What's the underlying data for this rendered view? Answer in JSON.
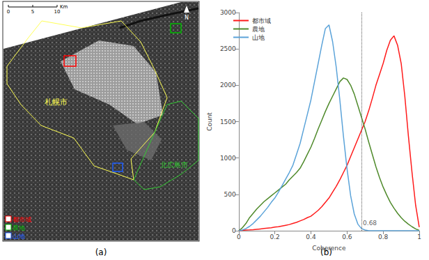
{
  "map": {
    "caption": "(a)",
    "scale_bar": {
      "ticks": [
        0,
        5,
        10
      ],
      "unit": "Km"
    },
    "north": "N",
    "city_labels": [
      {
        "text": "札幌市",
        "color": "#ffff55"
      },
      {
        "text": "北広島市",
        "color": "#33cc33"
      }
    ],
    "legend": [
      {
        "text": "都市域",
        "color": "#ff0000"
      },
      {
        "text": "農地",
        "color": "#00bb00"
      },
      {
        "text": "山地",
        "color": "#1f5fff"
      }
    ]
  },
  "chart_data": {
    "type": "line",
    "title": "(b)",
    "x_label": "Coherence",
    "y_label": "Count",
    "x": [
      0,
      0.02,
      0.04,
      0.06,
      0.08,
      0.1,
      0.12,
      0.14,
      0.16,
      0.18,
      0.2,
      0.22,
      0.24,
      0.26,
      0.28,
      0.3,
      0.32,
      0.34,
      0.36,
      0.38,
      0.4,
      0.42,
      0.44,
      0.46,
      0.48,
      0.5,
      0.52,
      0.54,
      0.56,
      0.58,
      0.6,
      0.62,
      0.64,
      0.66,
      0.68,
      0.7,
      0.72,
      0.74,
      0.76,
      0.78,
      0.8,
      0.82,
      0.84,
      0.86,
      0.88,
      0.9,
      0.92,
      0.94,
      0.96,
      0.98,
      1
    ],
    "series": [
      {
        "name": "都市域",
        "color": "#ff1a1a",
        "values": [
          0,
          5,
          10,
          12,
          15,
          20,
          25,
          30,
          35,
          40,
          50,
          55,
          65,
          75,
          85,
          100,
          115,
          135,
          155,
          180,
          200,
          240,
          280,
          330,
          390,
          450,
          530,
          610,
          700,
          800,
          900,
          1020,
          1140,
          1260,
          1380,
          1500,
          1650,
          1820,
          2000,
          2150,
          2300,
          2480,
          2620,
          2680,
          2550,
          2300,
          1850,
          1300,
          800,
          350,
          50
        ]
      },
      {
        "name": "農地",
        "color": "#4f8a2b",
        "values": [
          0,
          40,
          100,
          180,
          240,
          300,
          350,
          400,
          440,
          480,
          520,
          560,
          600,
          640,
          700,
          750,
          800,
          860,
          950,
          1050,
          1150,
          1270,
          1400,
          1520,
          1640,
          1750,
          1850,
          1950,
          2050,
          2100,
          2080,
          2000,
          1880,
          1720,
          1560,
          1400,
          1220,
          1050,
          880,
          730,
          600,
          490,
          390,
          310,
          240,
          180,
          130,
          90,
          55,
          25,
          5
        ]
      },
      {
        "name": "山地",
        "color": "#5ba3d9",
        "values": [
          0,
          10,
          30,
          60,
          100,
          150,
          200,
          260,
          320,
          390,
          450,
          530,
          620,
          710,
          800,
          900,
          1050,
          1200,
          1400,
          1600,
          1800,
          2050,
          2300,
          2550,
          2780,
          2830,
          2600,
          2250,
          1800,
          1300,
          850,
          480,
          230,
          90,
          30,
          10,
          0,
          0,
          0,
          0,
          0,
          0,
          0,
          0,
          0,
          0,
          0,
          0,
          0,
          0,
          0
        ]
      }
    ],
    "xlim": [
      0,
      1
    ],
    "xticks": [
      0,
      0.2,
      0.4,
      0.6,
      0.8,
      1
    ],
    "ylim": [
      0,
      3000
    ],
    "yticks": [
      0,
      500,
      1000,
      1500,
      2000,
      2500,
      3000
    ],
    "grid": false,
    "legend": "upper left",
    "annotations": [
      {
        "x": 0.68,
        "label": "0.68"
      }
    ]
  }
}
